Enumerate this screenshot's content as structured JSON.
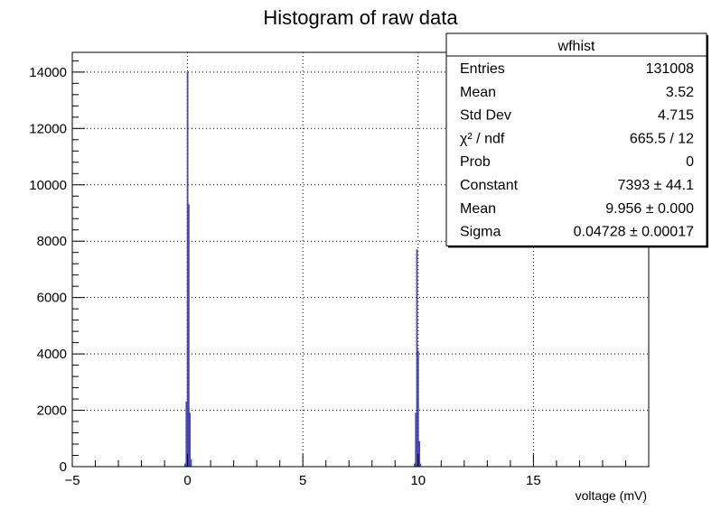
{
  "chart_data": {
    "type": "bar",
    "title": "Histogram of raw data",
    "xlabel": "voltage (mV)",
    "ylabel": "",
    "xlim": [
      -5,
      20
    ],
    "ylim": [
      0,
      14700
    ],
    "x_ticks": [
      -5,
      0,
      5,
      10,
      15
    ],
    "x_tick_labels": [
      "−5",
      "0",
      "5",
      "10",
      "15"
    ],
    "y_ticks": [
      0,
      2000,
      4000,
      6000,
      8000,
      10000,
      12000,
      14000
    ],
    "y_tick_labels": [
      "0",
      "2000",
      "4000",
      "6000",
      "8000",
      "10000",
      "12000",
      "14000"
    ],
    "grid": true,
    "series": [
      {
        "color": "#3b3ba8",
        "bin_width": 0.05,
        "bins": [
          {
            "x": -0.1,
            "y": 100
          },
          {
            "x": -0.05,
            "y": 2300
          },
          {
            "x": 0.0,
            "y": 14000
          },
          {
            "x": 0.05,
            "y": 9300
          },
          {
            "x": 0.1,
            "y": 1900
          },
          {
            "x": 0.15,
            "y": 250
          },
          {
            "x": 9.85,
            "y": 100
          },
          {
            "x": 9.9,
            "y": 1900
          },
          {
            "x": 9.95,
            "y": 7700
          },
          {
            "x": 10.0,
            "y": 4100
          },
          {
            "x": 10.05,
            "y": 900
          },
          {
            "x": 10.1,
            "y": 100
          }
        ]
      }
    ],
    "stats_box": {
      "title": "wfhist",
      "position": "top-right",
      "rows": [
        {
          "label": "Entries",
          "value": "131008"
        },
        {
          "label": "Mean",
          "value": "3.52"
        },
        {
          "label": "Std Dev",
          "value": "4.715"
        },
        {
          "label": "χ² / ndf",
          "value": "665.5 / 12"
        },
        {
          "label": "Prob",
          "value": "0"
        },
        {
          "label": "Constant",
          "value": "7393 ± 44.1"
        },
        {
          "label": "Mean",
          "value": "9.956 ± 0.000"
        },
        {
          "label": "Sigma",
          "value": "0.04728 ± 0.00017"
        }
      ]
    }
  }
}
